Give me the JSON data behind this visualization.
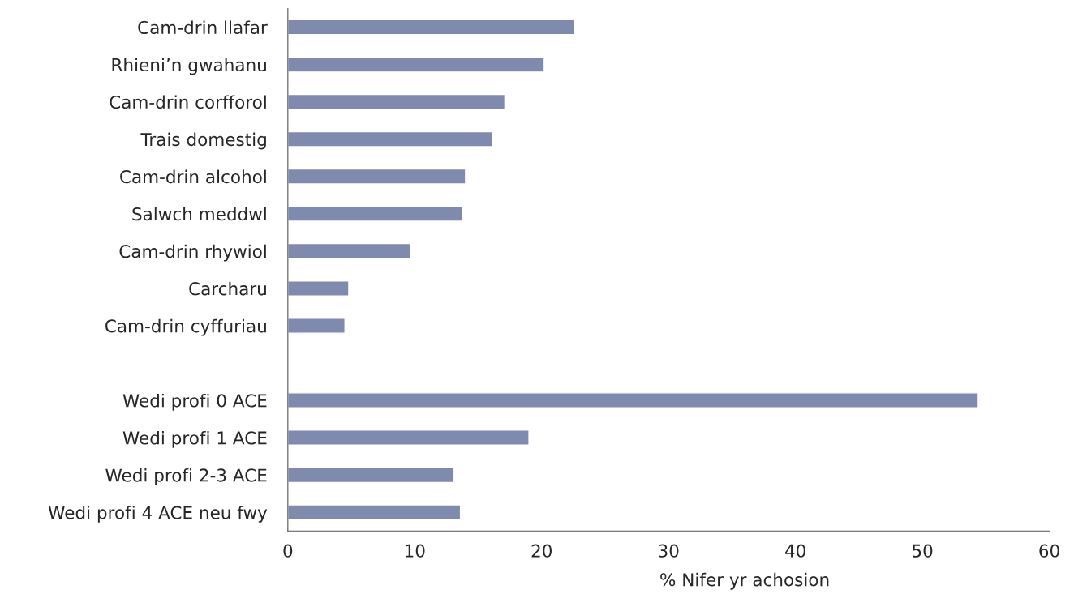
{
  "chart_data": {
    "type": "bar",
    "orientation": "horizontal",
    "xlabel": "% Nifer yr achosion",
    "categories": [
      "Cam-drin llafar",
      "Rhieni’n gwahanu",
      "Cam-drin corfforol",
      "Trais domestig",
      "Cam-drin alcohol",
      "Salwch meddwl",
      "Cam-drin rhywiol",
      "Carcharu",
      "Cam-drin cyffuriau",
      null,
      "Wedi profi 0 ACE",
      "Wedi profi 1 ACE",
      "Wedi profi 2-3 ACE",
      "Wedi profi 4 ACE neu fwy"
    ],
    "values": [
      22.6,
      20.2,
      17.1,
      16.1,
      14.0,
      13.8,
      9.7,
      4.8,
      4.5,
      null,
      54.4,
      19.0,
      13.1,
      13.6
    ],
    "color": "#7f8aaf",
    "xlim": [
      0,
      60
    ],
    "xticks": [
      0,
      10,
      20,
      30,
      40,
      50,
      60
    ],
    "grid": false,
    "legend": false
  }
}
